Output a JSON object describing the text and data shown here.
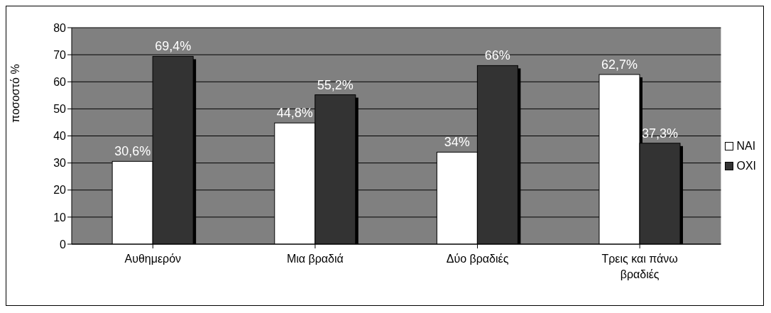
{
  "chart_data": {
    "type": "bar",
    "ylabel": "ποσοστό %",
    "categories": [
      "Αυθημερόν",
      "Μια βραδιά",
      "Δύο βραδιές",
      "Τρεις και πάνω βραδιές"
    ],
    "series": [
      {
        "name": "ΝΑΙ",
        "color": "#ffffff",
        "values": [
          30.6,
          44.8,
          34,
          62.7
        ],
        "value_labels": [
          "30,6%",
          "44,8%",
          "34%",
          "62,7%"
        ]
      },
      {
        "name": "ΟΧΙ",
        "color": "#333333",
        "values": [
          69.4,
          55.2,
          66,
          37.3
        ],
        "value_labels": [
          "69,4%",
          "55,2%",
          "66%",
          "37,3%"
        ]
      }
    ],
    "ylim": [
      0,
      80
    ],
    "yticks": [
      0,
      10,
      20,
      30,
      40,
      50,
      60,
      70,
      80
    ],
    "grid": "y",
    "legend": "right"
  }
}
